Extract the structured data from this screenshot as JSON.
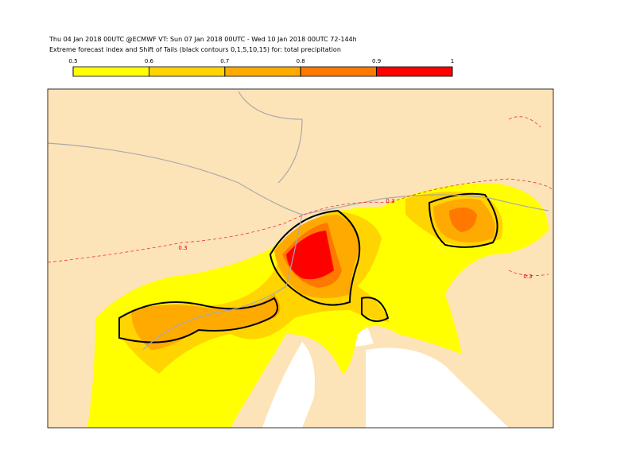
{
  "header": {
    "line1": "Thu 04 Jan 2018 00UTC @ECMWF VT: Sun 07 Jan 2018 00UTC - Wed 10 Jan 2018 00UTC  72-144h",
    "line2": "Extreme forecast index and Shift of Tails (black contours 0,1,5,10,15) for: total precipitation"
  },
  "colorbar": {
    "ticks": [
      0.5,
      0.6,
      0.7,
      0.8,
      0.9,
      1
    ],
    "colors": [
      "#ffff00",
      "#ffd400",
      "#ffaa00",
      "#ff7800",
      "#ff0000"
    ]
  },
  "map": {
    "contour_labels": [
      "0.3",
      "0.3",
      "0.3"
    ]
  }
}
